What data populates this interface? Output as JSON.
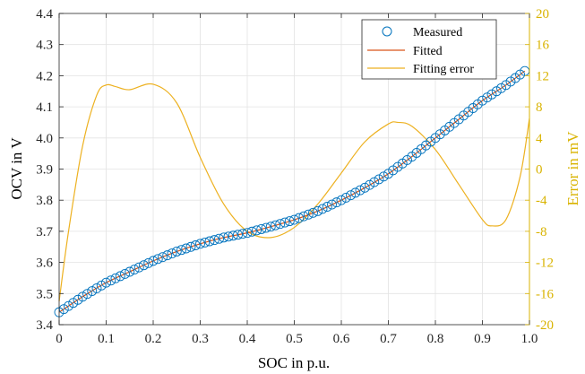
{
  "chart_data": {
    "type": "line",
    "xlabel": "SOC in p.u.",
    "ylabel_left": "OCV in V",
    "ylabel_right": "Error in mV",
    "xlim": [
      0,
      1
    ],
    "ylim_left": [
      3.4,
      4.4
    ],
    "ylim_right": [
      -20,
      20
    ],
    "x_ticks": [
      "0",
      "0.1",
      "0.2",
      "0.3",
      "0.4",
      "0.5",
      "0.6",
      "0.7",
      "0.8",
      "0.9",
      "1.0"
    ],
    "y_left_ticks": [
      "3.4",
      "3.5",
      "3.6",
      "3.7",
      "3.8",
      "3.9",
      "4.0",
      "4.1",
      "4.2",
      "4.3",
      "4.4"
    ],
    "y_right_ticks": [
      "-20",
      "-16",
      "-12",
      "-8",
      "-4",
      "0",
      "4",
      "8",
      "12",
      "16",
      "20"
    ],
    "grid": true,
    "legend_position": "top-right",
    "ocv_curve": {
      "soc": [
        0.0,
        0.02,
        0.05,
        0.1,
        0.15,
        0.2,
        0.25,
        0.3,
        0.35,
        0.4,
        0.45,
        0.5,
        0.55,
        0.6,
        0.65,
        0.7,
        0.75,
        0.8,
        0.85,
        0.9,
        0.95,
        0.99
      ],
      "ocv": [
        3.44,
        3.46,
        3.49,
        3.535,
        3.57,
        3.605,
        3.635,
        3.66,
        3.68,
        3.695,
        3.715,
        3.737,
        3.765,
        3.8,
        3.84,
        3.885,
        3.94,
        4.0,
        4.06,
        4.12,
        4.17,
        4.215
      ]
    },
    "series": [
      {
        "name": "Measured",
        "axis": "left",
        "marker": "circle",
        "color": "#0072BD"
      },
      {
        "name": "Fitted",
        "axis": "left",
        "line": "solid",
        "color": "#D95319"
      },
      {
        "name": "Fitting error",
        "axis": "right",
        "line": "solid",
        "color": "#EDB120",
        "x": [
          0.0,
          0.02,
          0.05,
          0.08,
          0.1,
          0.12,
          0.15,
          0.2,
          0.25,
          0.3,
          0.35,
          0.4,
          0.45,
          0.5,
          0.55,
          0.6,
          0.65,
          0.7,
          0.72,
          0.75,
          0.8,
          0.85,
          0.9,
          0.92,
          0.95,
          0.98,
          1.0
        ],
        "y": [
          -17,
          -8,
          3,
          9.5,
          10.8,
          10.6,
          10.2,
          10.9,
          8.5,
          1.5,
          -4.5,
          -8,
          -8.8,
          -7.5,
          -4.5,
          -0.5,
          3.5,
          5.8,
          6.0,
          5.5,
          2.5,
          -2,
          -6.5,
          -7.3,
          -6.5,
          -1,
          6.5
        ]
      }
    ]
  }
}
